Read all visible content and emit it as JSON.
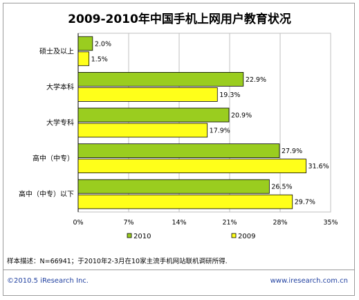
{
  "chart_data": {
    "type": "bar",
    "orientation": "horizontal",
    "title": "2009-2010年中国手机上网用户教育状况",
    "categories": [
      "硕士及以上",
      "大学本科",
      "大学专科",
      "高中（中专）",
      "高中（中专）以下"
    ],
    "series": [
      {
        "name": "2010",
        "color": "#9acd1f",
        "values": [
          2.0,
          22.9,
          20.9,
          27.9,
          26.5
        ],
        "labels": [
          "2.0%",
          "22.9%",
          "20.9%",
          "27.9%",
          "26.5%"
        ]
      },
      {
        "name": "2009",
        "color": "#ffff1a",
        "values": [
          1.5,
          19.3,
          17.9,
          31.6,
          29.7
        ],
        "labels": [
          "1.5%",
          "19.3%",
          "17.9%",
          "31.6%",
          "29.7%"
        ]
      }
    ],
    "xlim": [
      0,
      35
    ],
    "xticks": [
      0,
      7,
      14,
      21,
      28,
      35
    ],
    "xtick_labels": [
      "0%",
      "7%",
      "14%",
      "21%",
      "28%",
      "35%"
    ],
    "grid": true,
    "legend_position": "bottom"
  },
  "footer": {
    "note": "样本描述：N=66941；于2010年2-3月在10家主流手机网站联机调研所得.",
    "copyright": "©2010.5 iResearch Inc.",
    "website": "www.iresearch.com.cn"
  }
}
